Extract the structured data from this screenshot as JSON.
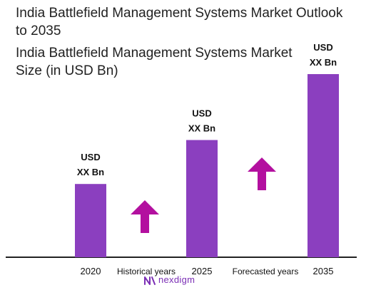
{
  "title": "India Battlefield Management Systems Market Outlook to 2035",
  "subtitle": "India Battlefield Management Systems Market Size (in USD Bn)",
  "colors": {
    "bar": "#8b3fbf",
    "arrow": "#b3109f",
    "baseline": "#222222"
  },
  "chart_data": {
    "type": "bar",
    "categories": [
      "2020",
      "2025",
      "2035"
    ],
    "values": [
      1.0,
      1.6,
      2.5
    ],
    "value_labels": [
      [
        "USD",
        "XX Bn"
      ],
      [
        "USD",
        "XX Bn"
      ],
      [
        "USD",
        "XX Bn"
      ]
    ],
    "annotations": [
      "Historical years",
      "Forecasted years"
    ],
    "ylim": [
      0,
      2.5
    ],
    "grid": false,
    "legend": "none"
  },
  "brand": {
    "name": "nexdigm",
    "icon": "nexdigm-logo-icon"
  }
}
